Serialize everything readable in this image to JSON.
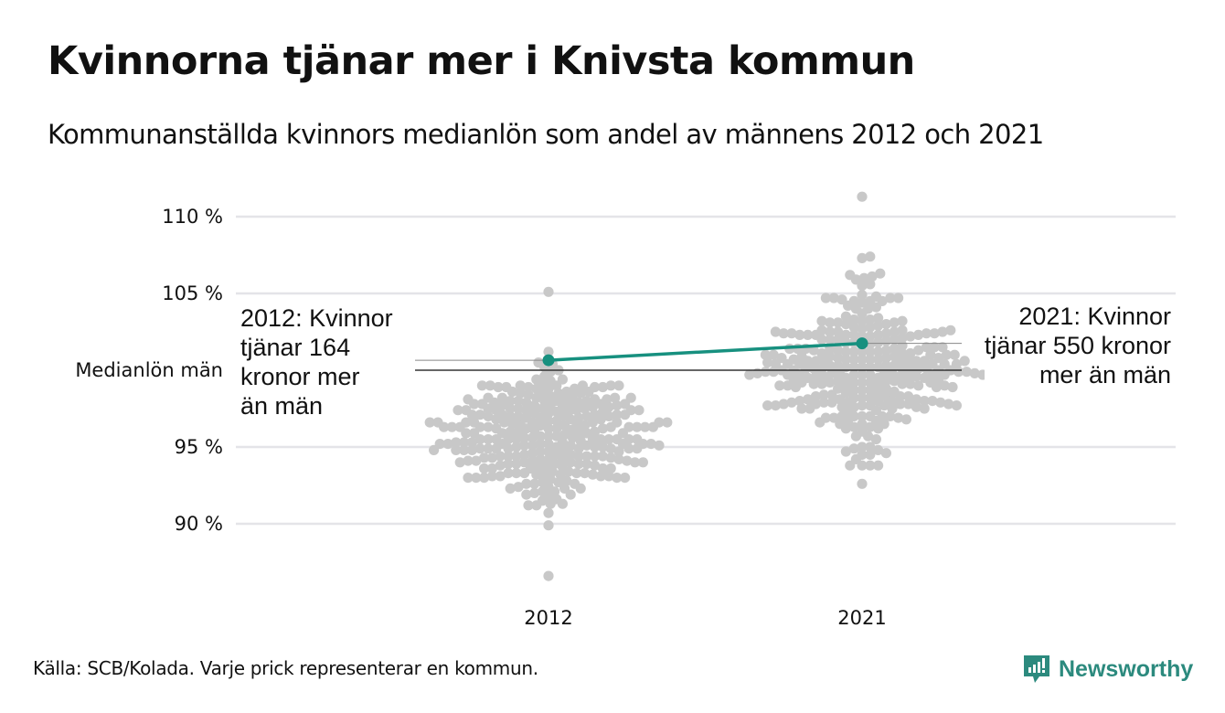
{
  "header": {
    "title": "Kvinnorna tjänar mer i Knivsta kommun",
    "subtitle": "Kommunanställda kvinnors medianlön som andel av männens 2012 och 2021"
  },
  "footer": {
    "source": "Källa: SCB/Kolada. Varje prick representerar en kommun.",
    "brand": "Newsworthy"
  },
  "colors": {
    "dots": "#c8c8c8",
    "highlight": "#17907f",
    "grid": "#e4e4e8",
    "reference": "#333333",
    "brand": "#2c8a7e"
  },
  "chart_data": {
    "type": "scatter",
    "subtype": "beeswarm",
    "title": "Kvinnorna tjänar mer i Knivsta kommun",
    "subtitle": "Kommunanställda kvinnors medianlön som andel av männens 2012 och 2021",
    "xlabel": "",
    "ylabel": "",
    "categories": [
      "2012",
      "2021"
    ],
    "ylim": [
      86,
      111.5
    ],
    "yticks": [
      90,
      95,
      105,
      110
    ],
    "ytick_labels": [
      "90 %",
      "95 %",
      "105 %",
      "110 %"
    ],
    "grid": true,
    "reference_line": {
      "value": 100,
      "label": "Medianlön män"
    },
    "series": [
      {
        "name": "2012",
        "n_points": 290,
        "center": 95.7,
        "spread": 2.2,
        "min": 86.6,
        "max": 105.1
      },
      {
        "name": "2021",
        "n_points": 290,
        "center": 100.2,
        "spread": 2.6,
        "min": 92.6,
        "max": 111.3
      }
    ],
    "highlight": {
      "name": "Knivsta",
      "values": [
        100.65,
        101.75
      ],
      "annotations": [
        {
          "category": "2012",
          "lines": [
            "2012: Kvinnor",
            "tjänar 164",
            "kronor mer",
            "än män"
          ]
        },
        {
          "category": "2021",
          "lines": [
            "2021: Kvinnor",
            "tjänar 550 kronor",
            "mer än män"
          ]
        }
      ]
    }
  }
}
